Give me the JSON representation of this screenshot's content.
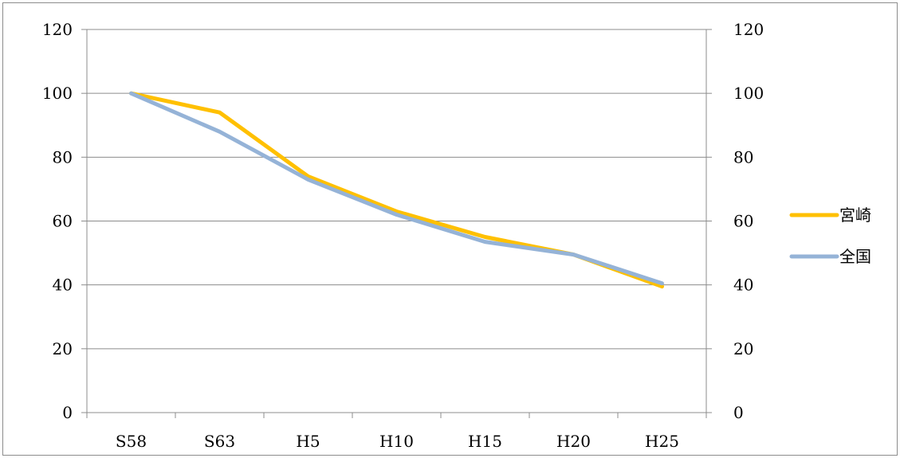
{
  "chart_data": {
    "type": "line",
    "title": "",
    "xlabel": "",
    "ylabel": "",
    "categories": [
      "S58",
      "S63",
      "H5",
      "H10",
      "H15",
      "H20",
      "H25"
    ],
    "ylim": [
      0,
      120
    ],
    "y_ticks": [
      "0",
      "20",
      "40",
      "60",
      "80",
      "100",
      "120"
    ],
    "y2_ticks": [
      "0",
      "20",
      "40",
      "60",
      "80",
      "100",
      "120"
    ],
    "grid": true,
    "legend_position": "right",
    "series": [
      {
        "name": "宮崎",
        "color": "#ffc000",
        "values": [
          100,
          94,
          74,
          63,
          55,
          49.5,
          39.5
        ]
      },
      {
        "name": "全国",
        "color": "#95b3d7",
        "values": [
          100,
          88,
          73,
          62,
          53.5,
          49.5,
          40.5
        ]
      }
    ]
  }
}
